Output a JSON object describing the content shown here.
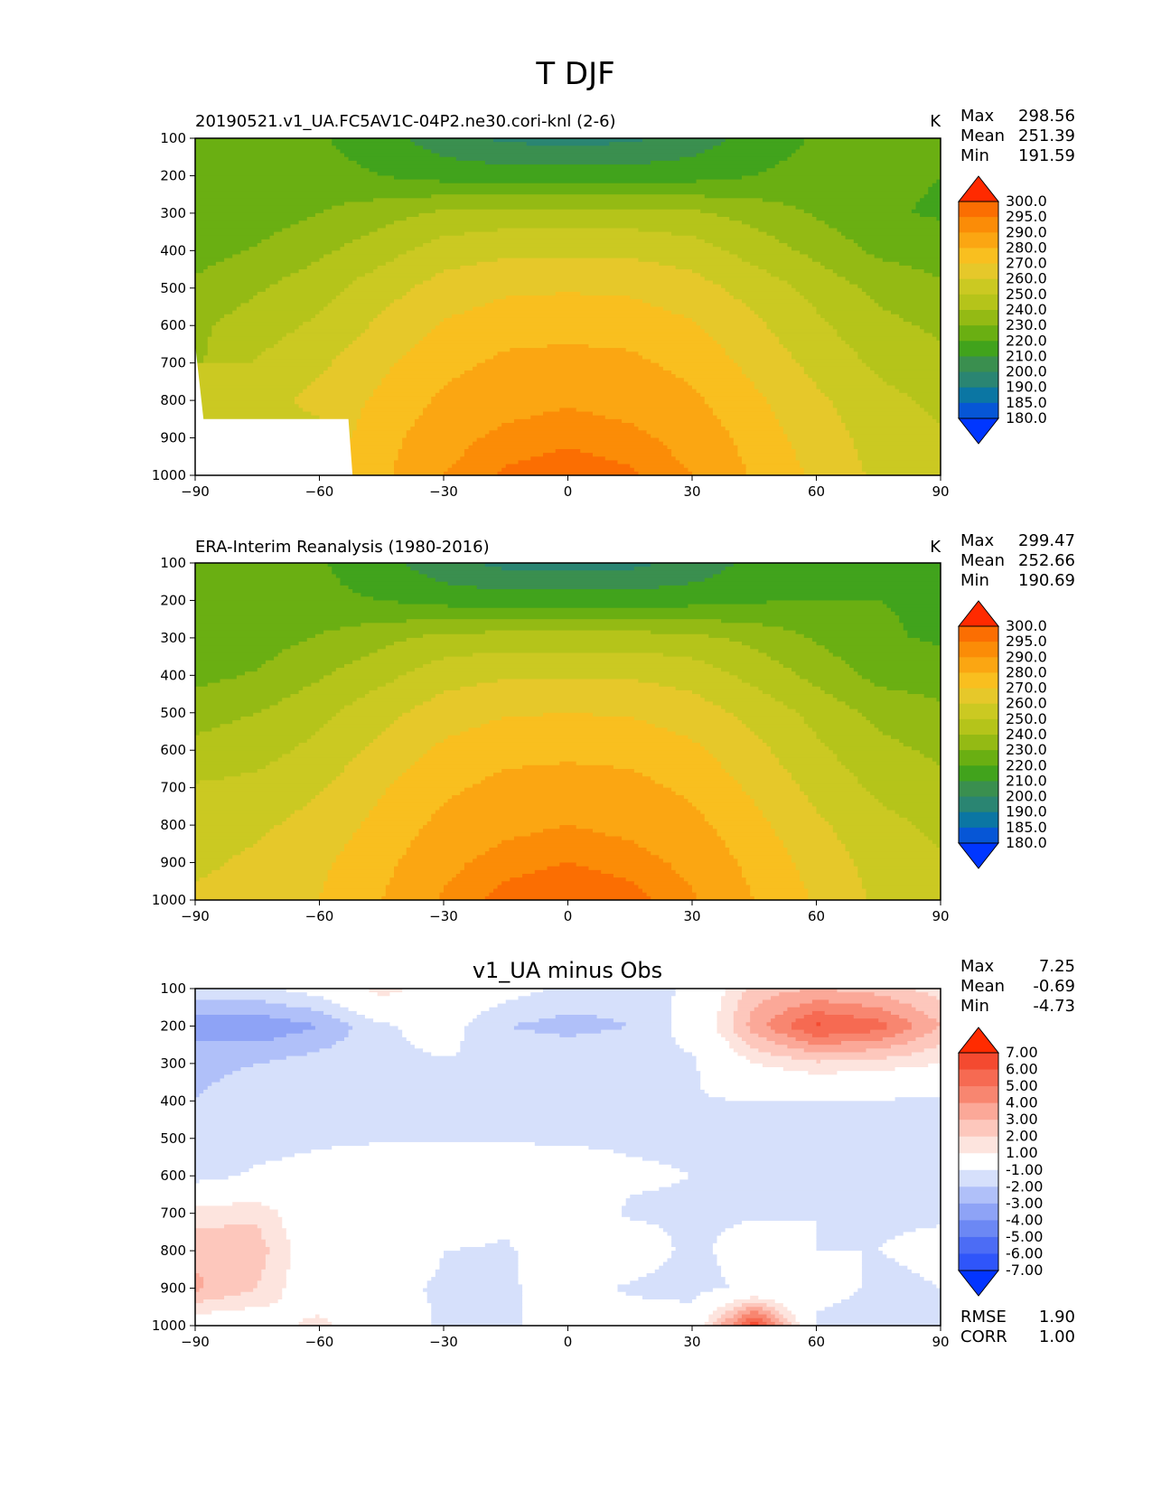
{
  "suptitle": "T DJF",
  "color_scales": {
    "temperature": {
      "levels": [
        "180.0",
        "185.0",
        "190.0",
        "200.0",
        "210.0",
        "220.0",
        "230.0",
        "240.0",
        "250.0",
        "260.0",
        "270.0",
        "280.0",
        "290.0",
        "295.0",
        "300.0"
      ],
      "colors": [
        "#0036ff",
        "#0656d6",
        "#0b76a3",
        "#2a8572",
        "#3a8f4f",
        "#41a31c",
        "#6aaf12",
        "#94ba14",
        "#b5c41a",
        "#cbc922",
        "#e6c82a",
        "#f9bf1f",
        "#fba612",
        "#fb8c07",
        "#fb6e02",
        "#f55200",
        "#ff2a00"
      ]
    },
    "difference": {
      "levels": [
        "-7.00",
        "-6.00",
        "-5.00",
        "-4.00",
        "-3.00",
        "-2.00",
        "-1.00",
        "1.00",
        "2.00",
        "3.00",
        "4.00",
        "5.00",
        "6.00",
        "7.00"
      ],
      "colors": [
        "#0335ff",
        "#2f55fa",
        "#4c6cf5",
        "#6c88f4",
        "#8ea3f6",
        "#b0c0f9",
        "#d6e0fb",
        "#ffffff",
        "#fde4de",
        "#fdc7bc",
        "#fba898",
        "#f88670",
        "#f66a52",
        "#f44a30",
        "#ff2b00"
      ]
    }
  },
  "panels": [
    {
      "title_left": "20190521.v1_UA.FC5AV1C-04P2.ne30.cori-knl (2-6)",
      "units": "K",
      "stats": [
        {
          "label": "Max",
          "value": "298.56"
        },
        {
          "label": "Mean",
          "value": "251.39"
        },
        {
          "label": "Min",
          "value": "191.59"
        }
      ]
    },
    {
      "title_left": "ERA-Interim Reanalysis (1980-2016)",
      "units": "K",
      "stats": [
        {
          "label": "Max",
          "value": "299.47"
        },
        {
          "label": "Mean",
          "value": "252.66"
        },
        {
          "label": "Min",
          "value": "190.69"
        }
      ]
    },
    {
      "title_center": "v1_UA minus Obs",
      "stats": [
        {
          "label": "Max",
          "value": "7.25"
        },
        {
          "label": "Mean",
          "value": "-0.69"
        },
        {
          "label": "Min",
          "value": "-4.73"
        }
      ],
      "metrics": [
        {
          "label": "RMSE",
          "value": "1.90"
        },
        {
          "label": "CORR",
          "value": "1.00"
        }
      ]
    }
  ],
  "chart_data": [
    {
      "type": "heatmap",
      "title": "20190521.v1_UA.FC5AV1C-04P2.ne30.cori-knl (2-6)",
      "units": "K",
      "x_ticks": [
        "−90",
        "−60",
        "−30",
        "0",
        "30",
        "60",
        "90"
      ],
      "y_ticks": [
        "100",
        "200",
        "300",
        "400",
        "500",
        "600",
        "700",
        "800",
        "900",
        "1000"
      ],
      "xlim": [
        -90,
        90
      ],
      "ylim": [
        1000,
        100
      ],
      "y_inverted": true,
      "lat": [
        -90,
        -75,
        -60,
        -45,
        -30,
        -15,
        0,
        15,
        30,
        45,
        60,
        75,
        90
      ],
      "plev": [
        100,
        200,
        300,
        400,
        500,
        600,
        700,
        800,
        900,
        1000
      ],
      "values": [
        [
          220,
          220,
          221,
          214,
          204,
          198,
          196,
          198,
          204,
          214,
          221,
          221,
          221
        ],
        [
          222,
          223,
          224,
          220,
          216,
          215,
          215,
          215,
          216,
          220,
          224,
          222,
          220
        ],
        [
          220,
          225,
          230,
          236,
          242,
          244,
          244,
          244,
          242,
          236,
          229,
          221,
          219
        ],
        [
          226,
          231,
          238,
          246,
          255,
          258,
          258,
          258,
          255,
          246,
          237,
          228,
          225
        ],
        [
          232,
          239,
          246,
          256,
          264,
          268,
          269,
          268,
          264,
          256,
          247,
          237,
          232
        ],
        [
          238,
          245,
          252,
          262,
          271,
          276,
          277,
          276,
          271,
          262,
          252,
          243,
          238
        ],
        [
          null,
          251,
          258,
          268,
          277,
          282,
          283,
          282,
          277,
          267,
          257,
          248,
          243
        ],
        [
          null,
          256,
          263,
          272,
          282,
          287,
          289,
          287,
          282,
          272,
          262,
          253,
          248
        ],
        [
          null,
          null,
          null,
          276,
          287,
          292,
          294,
          292,
          287,
          276,
          265,
          256,
          251
        ],
        [
          null,
          null,
          null,
          278,
          290,
          296,
          298,
          296,
          290,
          279,
          268,
          258,
          252
        ]
      ],
      "missing": [
        [
          -90,
          650
        ],
        [
          -88,
          850
        ],
        [
          -53,
          850
        ],
        [
          -52,
          1000
        ]
      ],
      "zmin": 191.59,
      "zmax": 298.56,
      "zmean": 251.39
    },
    {
      "type": "heatmap",
      "title": "ERA-Interim Reanalysis (1980-2016)",
      "units": "K",
      "x_ticks": [
        "−90",
        "−60",
        "−30",
        "0",
        "30",
        "60",
        "90"
      ],
      "y_ticks": [
        "100",
        "200",
        "300",
        "400",
        "500",
        "600",
        "700",
        "800",
        "900",
        "1000"
      ],
      "xlim": [
        -90,
        90
      ],
      "ylim": [
        1000,
        100
      ],
      "y_inverted": true,
      "lat": [
        -90,
        -75,
        -60,
        -45,
        -30,
        -15,
        0,
        15,
        30,
        45,
        60,
        75,
        90
      ],
      "plev": [
        100,
        200,
        300,
        400,
        500,
        600,
        700,
        800,
        900,
        1000
      ],
      "values": [
        [
          222,
          222,
          221,
          214,
          203,
          197,
          195,
          197,
          203,
          213,
          219,
          218,
          212
        ],
        [
          222,
          222,
          222,
          220,
          216,
          215,
          215,
          215,
          216,
          219,
          220,
          220,
          219
        ],
        [
          221,
          225,
          231,
          237,
          243,
          245,
          245,
          245,
          243,
          237,
          229,
          221,
          219
        ],
        [
          227,
          231,
          239,
          247,
          256,
          259,
          259,
          259,
          256,
          247,
          237,
          227,
          224
        ],
        [
          236,
          240,
          247,
          257,
          265,
          269,
          270,
          269,
          265,
          257,
          247,
          237,
          233
        ],
        [
          243,
          246,
          253,
          263,
          272,
          277,
          278,
          277,
          272,
          263,
          252,
          243,
          238
        ],
        [
          251,
          253,
          259,
          269,
          278,
          283,
          284,
          283,
          278,
          268,
          257,
          248,
          243
        ],
        [
          256,
          258,
          264,
          273,
          283,
          288,
          290,
          288,
          283,
          273,
          262,
          253,
          248
        ],
        [
          258,
          262,
          268,
          277,
          288,
          293,
          295,
          293,
          288,
          277,
          266,
          256,
          251
        ],
        [
          262,
          264,
          270,
          280,
          291,
          297,
          299,
          297,
          291,
          280,
          269,
          258,
          253
        ]
      ],
      "zmin": 190.69,
      "zmax": 299.47,
      "zmean": 252.66
    },
    {
      "type": "heatmap",
      "title": "v1_UA minus Obs",
      "x_ticks": [
        "−90",
        "−60",
        "−30",
        "0",
        "30",
        "60",
        "90"
      ],
      "y_ticks": [
        "100",
        "200",
        "300",
        "400",
        "500",
        "600",
        "700",
        "800",
        "900",
        "1000"
      ],
      "xlim": [
        -90,
        90
      ],
      "ylim": [
        1000,
        100
      ],
      "y_inverted": true,
      "lat": [
        -90,
        -75,
        -60,
        -45,
        -30,
        -15,
        0,
        15,
        30,
        45,
        60,
        75,
        90
      ],
      "plev": [
        100,
        200,
        300,
        400,
        500,
        600,
        700,
        800,
        900,
        1000
      ],
      "values": [
        [
          -1.5,
          -1.2,
          -0.5,
          1.5,
          0.3,
          -0.5,
          -1.2,
          -1.5,
          -0.8,
          2.5,
          3.0,
          2.5,
          1.5
        ],
        [
          -3.5,
          -3.8,
          -3.0,
          -1.2,
          -0.5,
          -2.0,
          -2.4,
          -2.0,
          -0.5,
          3.5,
          6.2,
          5.5,
          3.0
        ],
        [
          -2.2,
          -2.0,
          -1.5,
          -1.2,
          -1.1,
          -1.0,
          -1.0,
          -1.0,
          -1.2,
          1.0,
          1.8,
          1.5,
          1.0
        ],
        [
          -2.0,
          -1.6,
          -1.3,
          -1.1,
          -1.1,
          -1.1,
          -1.1,
          -1.1,
          -1.1,
          -1.0,
          -1.1,
          -1.1,
          -1.2
        ],
        [
          -2.0,
          -1.5,
          -1.2,
          -1.1,
          -1.1,
          -1.1,
          -1.1,
          -1.1,
          -1.1,
          -1.1,
          -1.3,
          -1.3,
          -1.4
        ],
        [
          -1.5,
          -0.8,
          -0.5,
          -0.3,
          -0.3,
          -0.3,
          -0.6,
          -0.9,
          -1.0,
          -1.1,
          -1.1,
          -1.2,
          -1.2
        ],
        [
          1.5,
          1.8,
          -0.5,
          -0.5,
          -0.3,
          -0.8,
          -0.5,
          -1.1,
          -1.1,
          -1.1,
          -1.0,
          -1.1,
          -1.1
        ],
        [
          2.8,
          2.5,
          -0.2,
          -0.3,
          -1.0,
          -1.1,
          -0.5,
          -0.5,
          -1.2,
          -0.6,
          -1.0,
          -1.0,
          -0.8
        ],
        [
          3.2,
          2.0,
          -0.3,
          -0.8,
          -1.1,
          -1.1,
          -0.7,
          -1.1,
          -1.3,
          -0.8,
          -0.5,
          -1.2,
          -1.0
        ],
        [
          0,
          0,
          1.5,
          -0.5,
          -1.1,
          -1.2,
          -0.5,
          -0.6,
          -0.5,
          7.0,
          -1.3,
          -1.5,
          -1.2
        ]
      ],
      "zmin": -4.73,
      "zmax": 7.25,
      "zmean": -0.69,
      "rmse": 1.9,
      "corr": 1.0
    }
  ]
}
